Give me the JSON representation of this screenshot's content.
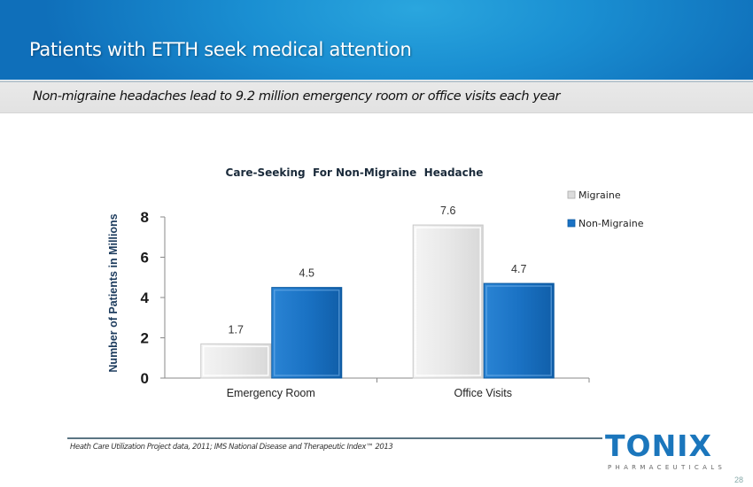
{
  "header": {
    "title": "Patients with ETTH seek medical attention"
  },
  "subtitle": "Non-migraine headaches lead to 9.2 million emergency room or office visits each year",
  "chart_data": {
    "type": "bar",
    "title": "Care-Seeking  For Non-Migraine  Headache",
    "xlabel": "",
    "ylabel": "Number of Patients in Millions",
    "categories": [
      "Emergency Room",
      "Office Visits"
    ],
    "series": [
      {
        "name": "Migraine",
        "values": [
          1.7,
          7.6
        ],
        "color": "#e6e6e6"
      },
      {
        "name": "Non-Migraine",
        "values": [
          4.5,
          4.7
        ],
        "color": "#1a72c4"
      }
    ],
    "data_labels": [
      [
        "1.7",
        "7.6"
      ],
      [
        "4.5",
        "4.7"
      ]
    ],
    "ylim": [
      0,
      8
    ],
    "yticks": [
      "0",
      "2",
      "4",
      "6",
      "8"
    ],
    "grid": false,
    "legend_position": "top-right"
  },
  "footnote": "Heath Care Utilization Project data, 2011; IMS National Disease and Therapeutic Index™ 2013",
  "logo": {
    "word": "TONIX",
    "sub": "PHARMACEUTICALS"
  },
  "page_number": "28"
}
